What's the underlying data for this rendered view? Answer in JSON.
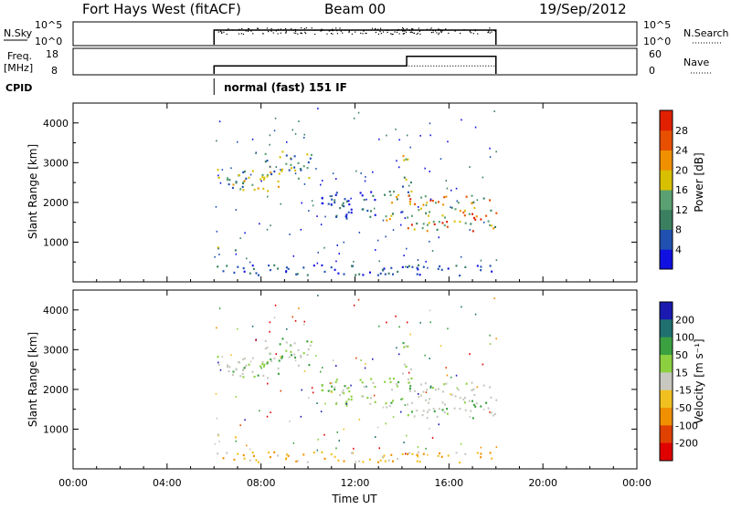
{
  "header": {
    "station": "Fort Hays West (fitACF)",
    "beam": "Beam 00",
    "date": "19/Sep/2012"
  },
  "strip_panels": {
    "noise": {
      "left_label": "N.Sky",
      "right_label": "N.Search",
      "left_ticks": [
        "10^5",
        "10^0"
      ],
      "right_ticks": [
        "10^5",
        "10^0"
      ]
    },
    "freq": {
      "left_label_1": "Freq.",
      "left_label_2": "[MHz]",
      "right_label": "Nave",
      "left_ticks": [
        "18",
        "8"
      ],
      "right_ticks": [
        "60",
        "0"
      ],
      "freq_step": [
        {
          "t": 6.0,
          "mhz": 11
        },
        {
          "t": 14.2,
          "mhz": 11
        },
        {
          "t": 14.2,
          "mhz": 15
        },
        {
          "t": 18.0,
          "mhz": 15
        }
      ],
      "nave_value": 20
    },
    "cpid": {
      "label": "CPID",
      "text": "normal (fast) 151 IF",
      "start": 6.0
    }
  },
  "chart_data": [
    {
      "type": "heatmap",
      "name": "power",
      "ylabel": "Slant Range [km]",
      "xlabel": "",
      "xlim": [
        0,
        24
      ],
      "ylim": [
        0,
        4500
      ],
      "yticks": [
        "1000",
        "2000",
        "3000",
        "4000"
      ],
      "colorbar_label": "Power [dB]",
      "colorbar_ticks": [
        "4",
        "8",
        "12",
        "16",
        "20",
        "24",
        "28"
      ],
      "colors": [
        "#1010e0",
        "#2050b0",
        "#3a8060",
        "#5aa070",
        "#d8c000",
        "#f09000",
        "#e85000",
        "#e02000"
      ],
      "regions": [
        {
          "t0": 6.0,
          "t1": 8.8,
          "r0": 2300,
          "r1": 2900,
          "level": "high"
        },
        {
          "t0": 8.0,
          "t1": 10.2,
          "r0": 2600,
          "r1": 3300,
          "level": "mid"
        },
        {
          "t0": 6.0,
          "t1": 7.0,
          "r0": 750,
          "r1": 900,
          "level": "mid"
        },
        {
          "t0": 13.2,
          "t1": 14.0,
          "r0": 1500,
          "r1": 2300,
          "level": "high"
        },
        {
          "t0": 14.2,
          "t1": 18.0,
          "r0": 1300,
          "r1": 2200,
          "level": "peak"
        },
        {
          "t0": 14.0,
          "t1": 14.4,
          "r0": 2000,
          "r1": 3200,
          "level": "high"
        },
        {
          "t0": 10.5,
          "t1": 13.0,
          "r0": 1600,
          "r1": 2300,
          "level": "low"
        },
        {
          "t0": 6.0,
          "t1": 18.0,
          "r0": 180,
          "r1": 450,
          "level": "low"
        }
      ]
    },
    {
      "type": "heatmap",
      "name": "velocity",
      "ylabel": "Slant Range [km]",
      "xlabel": "Time UT",
      "xlim": [
        0,
        24
      ],
      "ylim": [
        0,
        4500
      ],
      "yticks": [
        "1000",
        "2000",
        "3000",
        "4000"
      ],
      "xticks": [
        "00:00",
        "04:00",
        "08:00",
        "12:00",
        "16:00",
        "20:00",
        "00:00"
      ],
      "colorbar_label": "Velocity [m s⁻¹]",
      "colorbar_ticks": [
        "200",
        "100",
        "50",
        "15",
        "-15",
        "-50",
        "-100",
        "-200"
      ],
      "colors": [
        "#1a1ab0",
        "#207070",
        "#3aa040",
        "#8cd040",
        "#c8c8c0",
        "#f0c020",
        "#f09000",
        "#e04000",
        "#e00000"
      ],
      "regions": [
        {
          "t0": 6.0,
          "t1": 8.8,
          "r0": 2300,
          "r1": 2900,
          "level": "grey"
        },
        {
          "t0": 8.0,
          "t1": 10.2,
          "r0": 2600,
          "r1": 3300,
          "level": "grey"
        },
        {
          "t0": 6.0,
          "t1": 7.0,
          "r0": 750,
          "r1": 900,
          "level": "orange"
        },
        {
          "t0": 13.2,
          "t1": 14.0,
          "r0": 1500,
          "r1": 2300,
          "level": "green"
        },
        {
          "t0": 14.2,
          "t1": 18.0,
          "r0": 1300,
          "r1": 2200,
          "level": "grey"
        },
        {
          "t0": 14.0,
          "t1": 14.4,
          "r0": 2000,
          "r1": 3200,
          "level": "grey"
        },
        {
          "t0": 10.5,
          "t1": 13.0,
          "r0": 1600,
          "r1": 2300,
          "level": "green"
        },
        {
          "t0": 6.0,
          "t1": 18.0,
          "r0": 180,
          "r1": 450,
          "level": "orange"
        }
      ]
    }
  ]
}
